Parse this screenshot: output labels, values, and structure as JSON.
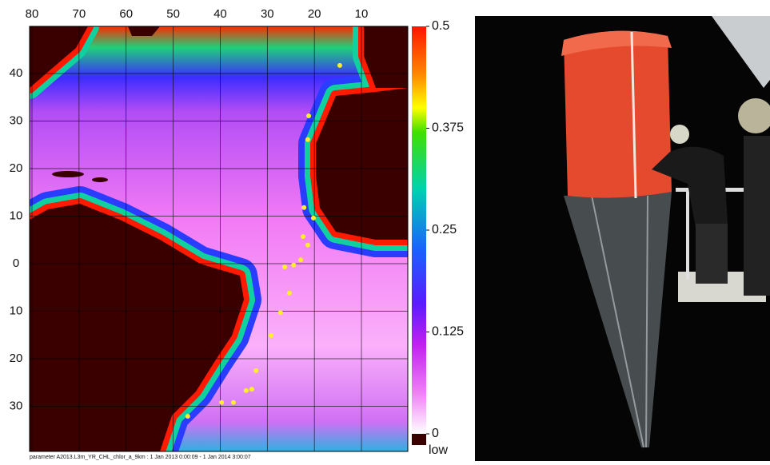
{
  "map": {
    "lon_ticks": [
      {
        "value": -80,
        "label": "80"
      },
      {
        "value": -70,
        "label": "70"
      },
      {
        "value": -60,
        "label": "60"
      },
      {
        "value": -50,
        "label": "50"
      },
      {
        "value": -40,
        "label": "40"
      },
      {
        "value": -30,
        "label": "30"
      },
      {
        "value": -20,
        "label": "20"
      },
      {
        "value": -10,
        "label": "10"
      }
    ],
    "lat_ticks": [
      40,
      30,
      20,
      10,
      0,
      {
        "value": -10,
        "label": "10"
      },
      {
        "value": -20,
        "label": "20"
      },
      {
        "value": -30,
        "label": "30"
      }
    ],
    "colorbar": {
      "ticks": [
        0.5,
        0.375,
        0.25,
        0.125,
        0
      ],
      "low_label": "low"
    },
    "caption": "parameter A2013.L3m_YR_CHL_chlor_a_9km : 1 Jan 2013 0:00:09 - 1 Jan 2014 3:00:07",
    "stations": {
      "lon": [
        -14.6,
        -21.2,
        -21.4,
        -22.2,
        -20.2,
        -22.4,
        -21.4,
        -22.9,
        -24.4,
        -26.3,
        -25.3,
        -27.2,
        -29.2,
        -32.4,
        -33.3,
        -34.5,
        -37.2,
        -39.7,
        -46.9
      ],
      "lat": [
        41.7,
        31.1,
        26.1,
        11.8,
        9.6,
        5.7,
        3.9,
        0.8,
        -0.3,
        -0.7,
        -6.2,
        -10.3,
        -15.1,
        -22.5,
        -26.4,
        -26.7,
        -29.2,
        -29.2,
        -32.1
      ]
    }
  }
}
